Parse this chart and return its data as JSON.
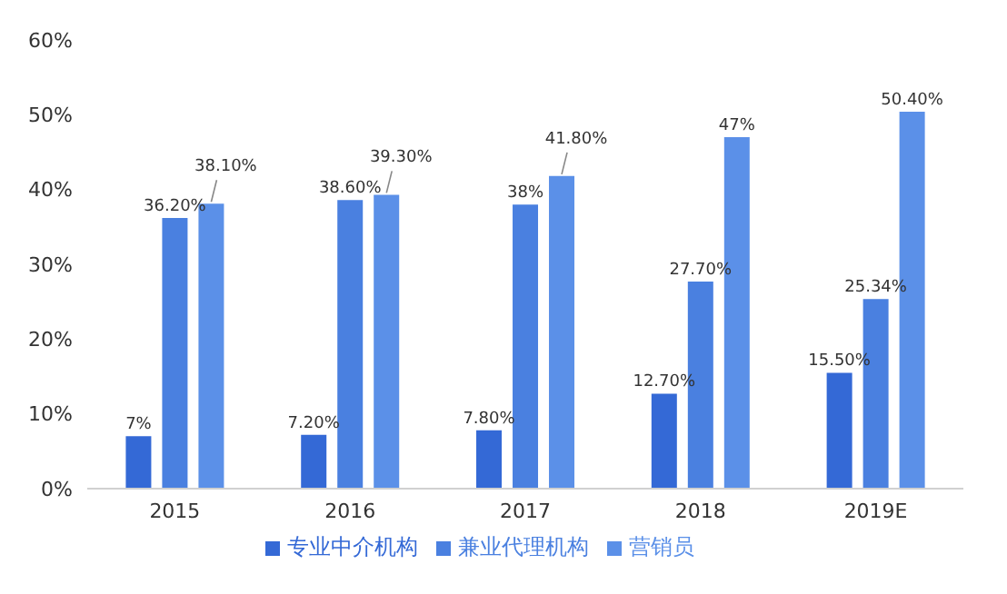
{
  "chart_data": {
    "type": "bar",
    "categories": [
      "2015",
      "2016",
      "2017",
      "2018",
      "2019E"
    ],
    "series": [
      {
        "name": "专业中介机构",
        "color": "#3469d6",
        "values": [
          7,
          7.2,
          7.8,
          12.7,
          15.5
        ],
        "value_labels": [
          "7%",
          "7.20%",
          "7.80%",
          "12.70%",
          "15.50%"
        ]
      },
      {
        "name": "兼业代理机构",
        "color": "#4a80e0",
        "values": [
          36.2,
          38.6,
          38,
          27.7,
          25.34
        ],
        "value_labels": [
          "36.20%",
          "38.60%",
          "38%",
          "27.70%",
          "25.34%"
        ]
      },
      {
        "name": "营销员",
        "color": "#5b90e8",
        "values": [
          38.1,
          39.3,
          41.8,
          47,
          50.4
        ],
        "value_labels": [
          "38.10%",
          "39.30%",
          "41.80%",
          "47%",
          "50.40%"
        ]
      }
    ],
    "ylim": [
      0,
      60
    ],
    "yticks": [
      {
        "value": 0,
        "label": "0%"
      },
      {
        "value": 10,
        "label": "10%"
      },
      {
        "value": 20,
        "label": "20%"
      },
      {
        "value": 30,
        "label": "30%"
      },
      {
        "value": 40,
        "label": "40%"
      },
      {
        "value": 50,
        "label": "50%"
      },
      {
        "value": 60,
        "label": "60%"
      }
    ],
    "grid": false,
    "legend": "bottom"
  }
}
